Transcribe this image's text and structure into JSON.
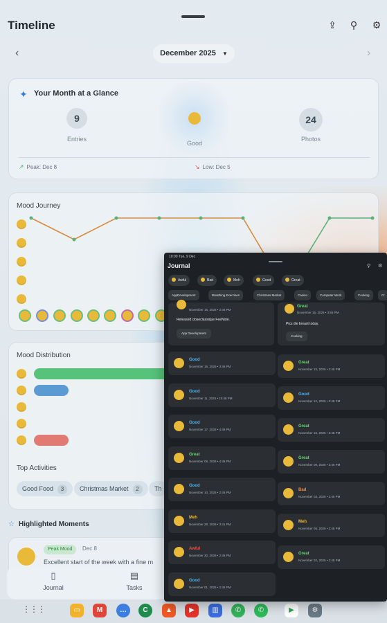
{
  "topbar": {
    "title": "Timeline"
  },
  "month_selector": {
    "label": "December 2025"
  },
  "glance": {
    "heading": "Your Month at a Glance",
    "stats": [
      {
        "value": "9",
        "label": "Entries"
      },
      {
        "value": "",
        "label": "Good"
      },
      {
        "value": "24",
        "label": "Photos"
      }
    ],
    "peak": "Peak: Dec 8",
    "low": "Low: Dec 5"
  },
  "journey": {
    "heading": "Mood Journey"
  },
  "distribution": {
    "heading": "Mood Distribution",
    "top_activities_heading": "Top Activities",
    "activities": [
      {
        "label": "Good Food",
        "count": "3"
      },
      {
        "label": "Christmas Market",
        "count": "2"
      },
      {
        "label": "Th",
        "count": ""
      }
    ]
  },
  "highlights": {
    "heading": "Highlighted Moments",
    "moment": {
      "tag": "Peak Mood",
      "date": "Dec 8",
      "text": "Excellent start of the week with a fine m"
    }
  },
  "bottom_nav": {
    "items": [
      "Journal",
      "Tasks"
    ]
  },
  "overlay": {
    "status": "10:00  Tue, 9 Dec",
    "title": "Journal",
    "mood_filters": [
      "Awful",
      "Bad",
      "Meh",
      "Good",
      "Great"
    ],
    "activity_filters": [
      "AppDevelopment",
      "Breathing Exercises",
      "Christmas Market",
      "Casino",
      "Computer Work",
      "Cooking",
      "Cr"
    ],
    "top_left": {
      "date": "November 15, 2025 • 2:45 PM",
      "note": "Released closeclassique FeeNote.",
      "activity": "App Development"
    },
    "top_right": {
      "mood": "Great",
      "date": "November 15, 2025 • 3:55 PM",
      "note": "Pics die breast today.",
      "activity": "Cooking"
    },
    "left_entries": [
      {
        "mood": "Good",
        "date": "November 15, 2025 • 3:46 PM"
      },
      {
        "mood": "Good",
        "date": "November 11, 2025 • 10:46 PM"
      },
      {
        "mood": "Good",
        "date": "November 17, 2025 • 4:46 PM"
      },
      {
        "mood": "Great",
        "date": "November 08, 2025 • 4:45 PM"
      },
      {
        "mood": "Good",
        "date": "November 10, 2025 • 2:45 PM"
      },
      {
        "mood": "Meh",
        "date": "November 28, 2025 • 3:41 PM"
      },
      {
        "mood": "Awful",
        "date": "November 30, 2025 • 2:45 PM"
      },
      {
        "mood": "Good",
        "date": "November 01, 2025 • 2:45 PM"
      }
    ],
    "right_entries": [
      {
        "mood": "Great",
        "date": "November 15, 2025 • 2:45 PM"
      },
      {
        "mood": "Good",
        "date": "November 12, 2025 • 2:45 PM"
      },
      {
        "mood": "Great",
        "date": "November 16, 2025 • 2:45 PM"
      },
      {
        "mood": "Great",
        "date": "November 09, 2025 • 2:45 PM"
      },
      {
        "mood": "Bad",
        "date": "November 03, 2025 • 2:46 PM"
      },
      {
        "mood": "Meh",
        "date": "November 05, 2025 • 2:45 PM"
      },
      {
        "mood": "Great",
        "date": "November 02, 2025 • 2:45 PM"
      }
    ],
    "mood_colors": {
      "Great": "#6fcf7c",
      "Good": "#5bb0e6",
      "Meh": "#e9b93a",
      "Bad": "#f08a3b",
      "Awful": "#e3584b"
    }
  },
  "colors": {
    "accent": "#3b7bd8",
    "great": "#57c27a",
    "good": "#5a9bd4",
    "awful": "#e07a72"
  }
}
